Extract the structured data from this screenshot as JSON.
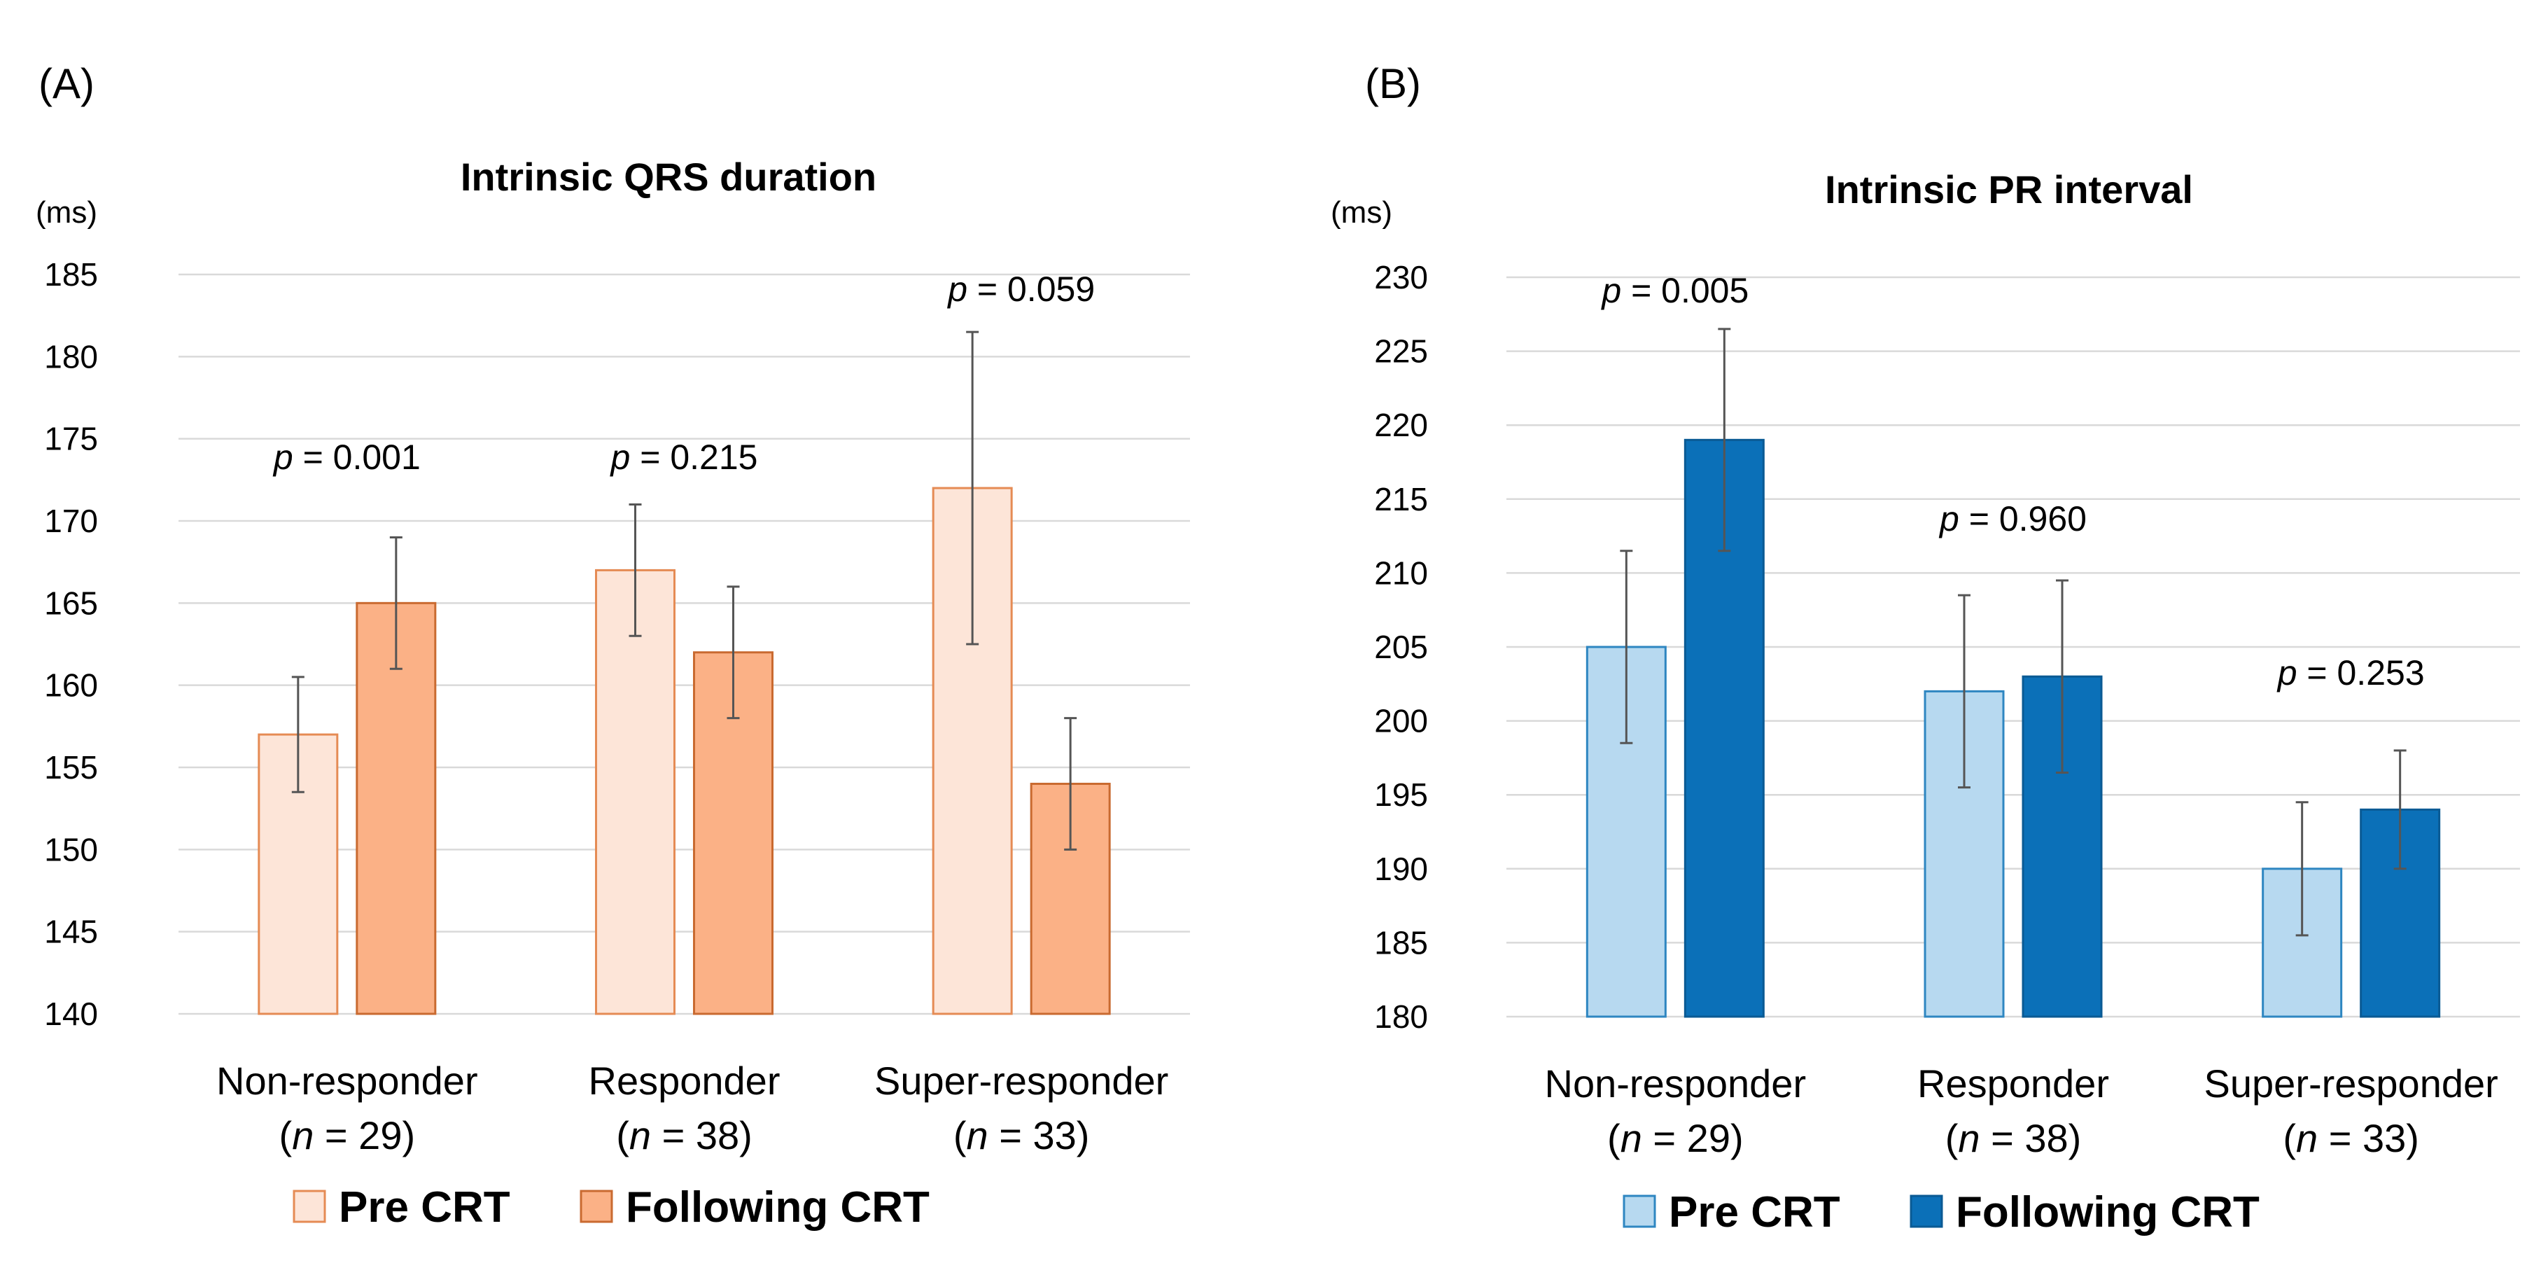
{
  "chart_data": [
    {
      "panel": "(A)",
      "type": "bar",
      "title": "Intrinsic QRS duration",
      "ylabel": "(ms)",
      "ylim": [
        140,
        185
      ],
      "yticks": [
        140,
        145,
        150,
        155,
        160,
        165,
        170,
        175,
        180,
        185
      ],
      "categories": [
        "Non-responder",
        "Responder",
        "Super-responder"
      ],
      "category_n": [
        "(n = 29)",
        "(n = 38)",
        "(n = 33)"
      ],
      "n_values": [
        "29",
        "38",
        "33"
      ],
      "p_values": [
        "0.001",
        "0.215",
        "0.059"
      ],
      "series": [
        {
          "name": "Pre CRT",
          "values": [
            157,
            167,
            172
          ],
          "error_low": [
            153.5,
            163,
            162.5
          ],
          "error_high": [
            160.5,
            171,
            181.5
          ],
          "fill": "#fde5d8",
          "stroke": "#e58b54"
        },
        {
          "name": "Following CRT",
          "values": [
            165,
            162,
            154
          ],
          "error_low": [
            161,
            158,
            150
          ],
          "error_high": [
            169,
            166,
            158
          ],
          "fill": "#fbb186",
          "stroke": "#c96a30"
        }
      ],
      "grid": true,
      "legend": "bottom"
    },
    {
      "panel": "(B)",
      "type": "bar",
      "title": "Intrinsic PR interval",
      "ylabel": "(ms)",
      "ylim": [
        180,
        230
      ],
      "yticks": [
        180,
        185,
        190,
        195,
        200,
        205,
        210,
        215,
        220,
        225,
        230
      ],
      "categories": [
        "Non-responder",
        "Responder",
        "Super-responder"
      ],
      "category_n": [
        "(n = 29)",
        "(n = 38)",
        "(n = 33)"
      ],
      "n_values": [
        "29",
        "38",
        "33"
      ],
      "p_values": [
        "0.005",
        "0.960",
        "0.253"
      ],
      "series": [
        {
          "name": "Pre CRT",
          "values": [
            205,
            202,
            190
          ],
          "error_low": [
            198.5,
            195.5,
            185.5
          ],
          "error_high": [
            211.5,
            208.5,
            194.5
          ],
          "fill": "#b7d9f0",
          "stroke": "#2e86c1"
        },
        {
          "name": "Following CRT",
          "values": [
            219,
            203,
            194
          ],
          "error_low": [
            211.5,
            196.5,
            190
          ],
          "error_high": [
            226.5,
            209.5,
            198
          ],
          "fill": "#0b70b8",
          "stroke": "#0a5a94"
        }
      ],
      "grid": true,
      "legend": "bottom"
    }
  ]
}
